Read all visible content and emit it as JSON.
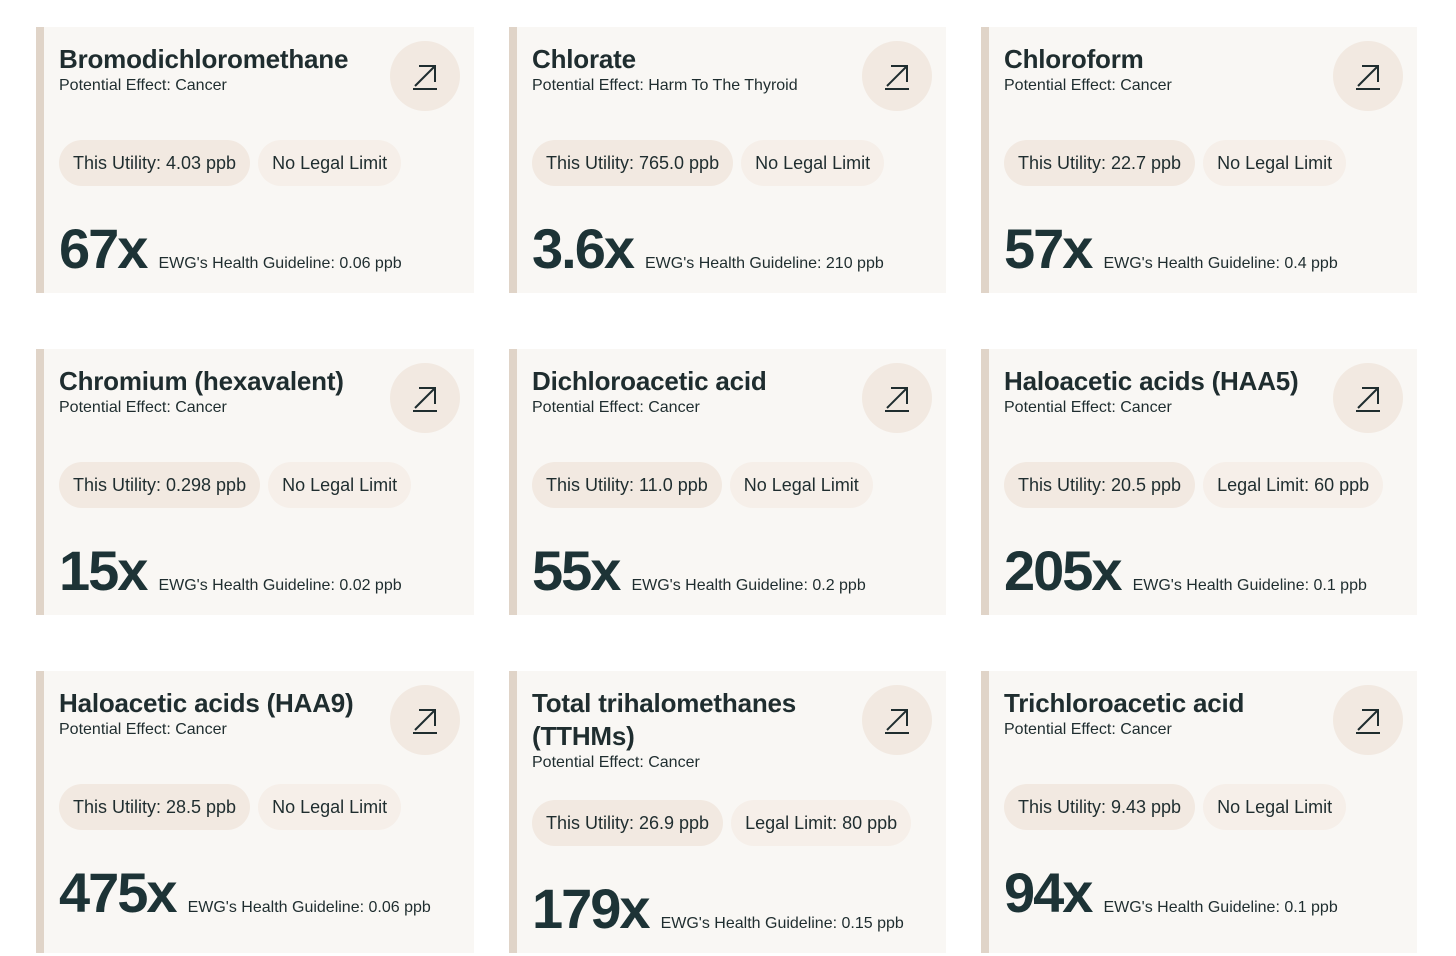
{
  "cards": [
    {
      "title": "Bromodichloromethane",
      "effect": "Potential Effect: Cancer",
      "utility": "This Utility: 4.03 ppb",
      "limit": "No Legal Limit",
      "multiplier": "67x",
      "guideline": "EWG's Health Guideline: 0.06 ppb"
    },
    {
      "title": "Chlorate",
      "effect": "Potential Effect: Harm To The Thyroid",
      "utility": "This Utility: 765.0 ppb",
      "limit": "No Legal Limit",
      "multiplier": "3.6x",
      "guideline": "EWG's Health Guideline: 210 ppb"
    },
    {
      "title": "Chloroform",
      "effect": "Potential Effect: Cancer",
      "utility": "This Utility: 22.7 ppb",
      "limit": "No Legal Limit",
      "multiplier": "57x",
      "guideline": "EWG's Health Guideline: 0.4 ppb"
    },
    {
      "title": "Chromium (hexavalent)",
      "effect": "Potential Effect: Cancer",
      "utility": "This Utility: 0.298 ppb",
      "limit": "No Legal Limit",
      "multiplier": "15x",
      "guideline": "EWG's Health Guideline: 0.02 ppb"
    },
    {
      "title": "Dichloroacetic acid",
      "effect": "Potential Effect: Cancer",
      "utility": "This Utility: 11.0 ppb",
      "limit": "No Legal Limit",
      "multiplier": "55x",
      "guideline": "EWG's Health Guideline: 0.2 ppb"
    },
    {
      "title": "Haloacetic acids (HAA5)",
      "effect": "Potential Effect: Cancer",
      "utility": "This Utility: 20.5 ppb",
      "limit": "Legal Limit: 60 ppb",
      "multiplier": "205x",
      "guideline": "EWG's Health Guideline: 0.1 ppb"
    },
    {
      "title": "Haloacetic acids (HAA9)",
      "effect": "Potential Effect: Cancer",
      "utility": "This Utility: 28.5 ppb",
      "limit": "No Legal Limit",
      "multiplier": "475x",
      "guideline": "EWG's Health Guideline: 0.06 ppb"
    },
    {
      "title": "Total trihalomethanes (TTHMs)",
      "effect": "Potential Effect: Cancer",
      "utility": "This Utility: 26.9 ppb",
      "limit": "Legal Limit: 80 ppb",
      "multiplier": "179x",
      "guideline": "EWG's Health Guideline: 0.15 ppb"
    },
    {
      "title": "Trichloroacetic acid",
      "effect": "Potential Effect: Cancer",
      "utility": "This Utility: 9.43 ppb",
      "limit": "No Legal Limit",
      "multiplier": "94x",
      "guideline": "EWG's Health Guideline: 0.1 ppb"
    }
  ],
  "icons": {
    "open": "arrow-up-right-icon"
  },
  "colors": {
    "card_bg": "#f9f7f4",
    "accent_bar": "#e0d4c8",
    "pill": "#f2e9e1",
    "text": "#1f2d2f"
  }
}
